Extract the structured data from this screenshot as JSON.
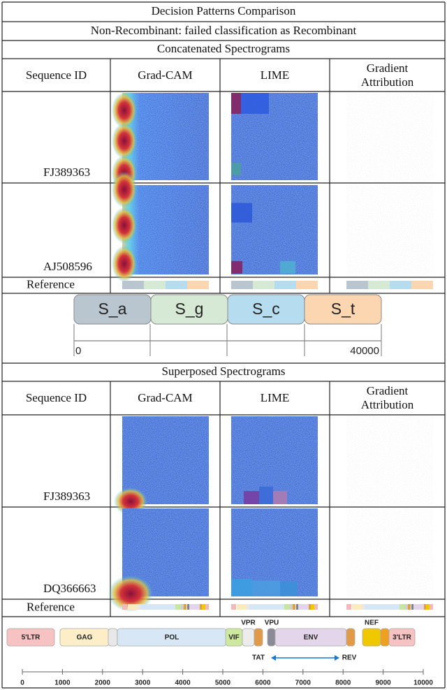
{
  "title": "Decision Patterns Comparison",
  "subtitle": "Non-Recombinant: failed classification as Recombinant",
  "sections": [
    {
      "heading": "Concatenated Spectrograms",
      "columns": [
        "Sequence ID",
        "Grad-CAM",
        "LIME",
        "Gradient Attribution"
      ],
      "rows": [
        "FJ389363",
        "AJ508596"
      ],
      "reference": "Reference",
      "diagram": {
        "segments": [
          "S_a",
          "S_g",
          "S_c",
          "S_t"
        ],
        "axis_labels": [
          "0",
          "40000"
        ]
      }
    },
    {
      "heading": "Superposed Spectrograms",
      "columns": [
        "Sequence ID",
        "Grad-CAM",
        "LIME",
        "Gradient Attribution"
      ],
      "rows": [
        "FJ389363",
        "DQ366663"
      ],
      "reference": "Reference",
      "diagram": {
        "genes": [
          "5'LTR",
          "GAG",
          "POL",
          "VIF",
          "VPR",
          "VPU",
          "ENV",
          "TAT",
          "REV",
          "NEF",
          "3'LTR"
        ],
        "axis_ticks": [
          0,
          1000,
          2000,
          3000,
          4000,
          5000,
          6000,
          7000,
          8000,
          9000,
          10000
        ]
      }
    }
  ]
}
